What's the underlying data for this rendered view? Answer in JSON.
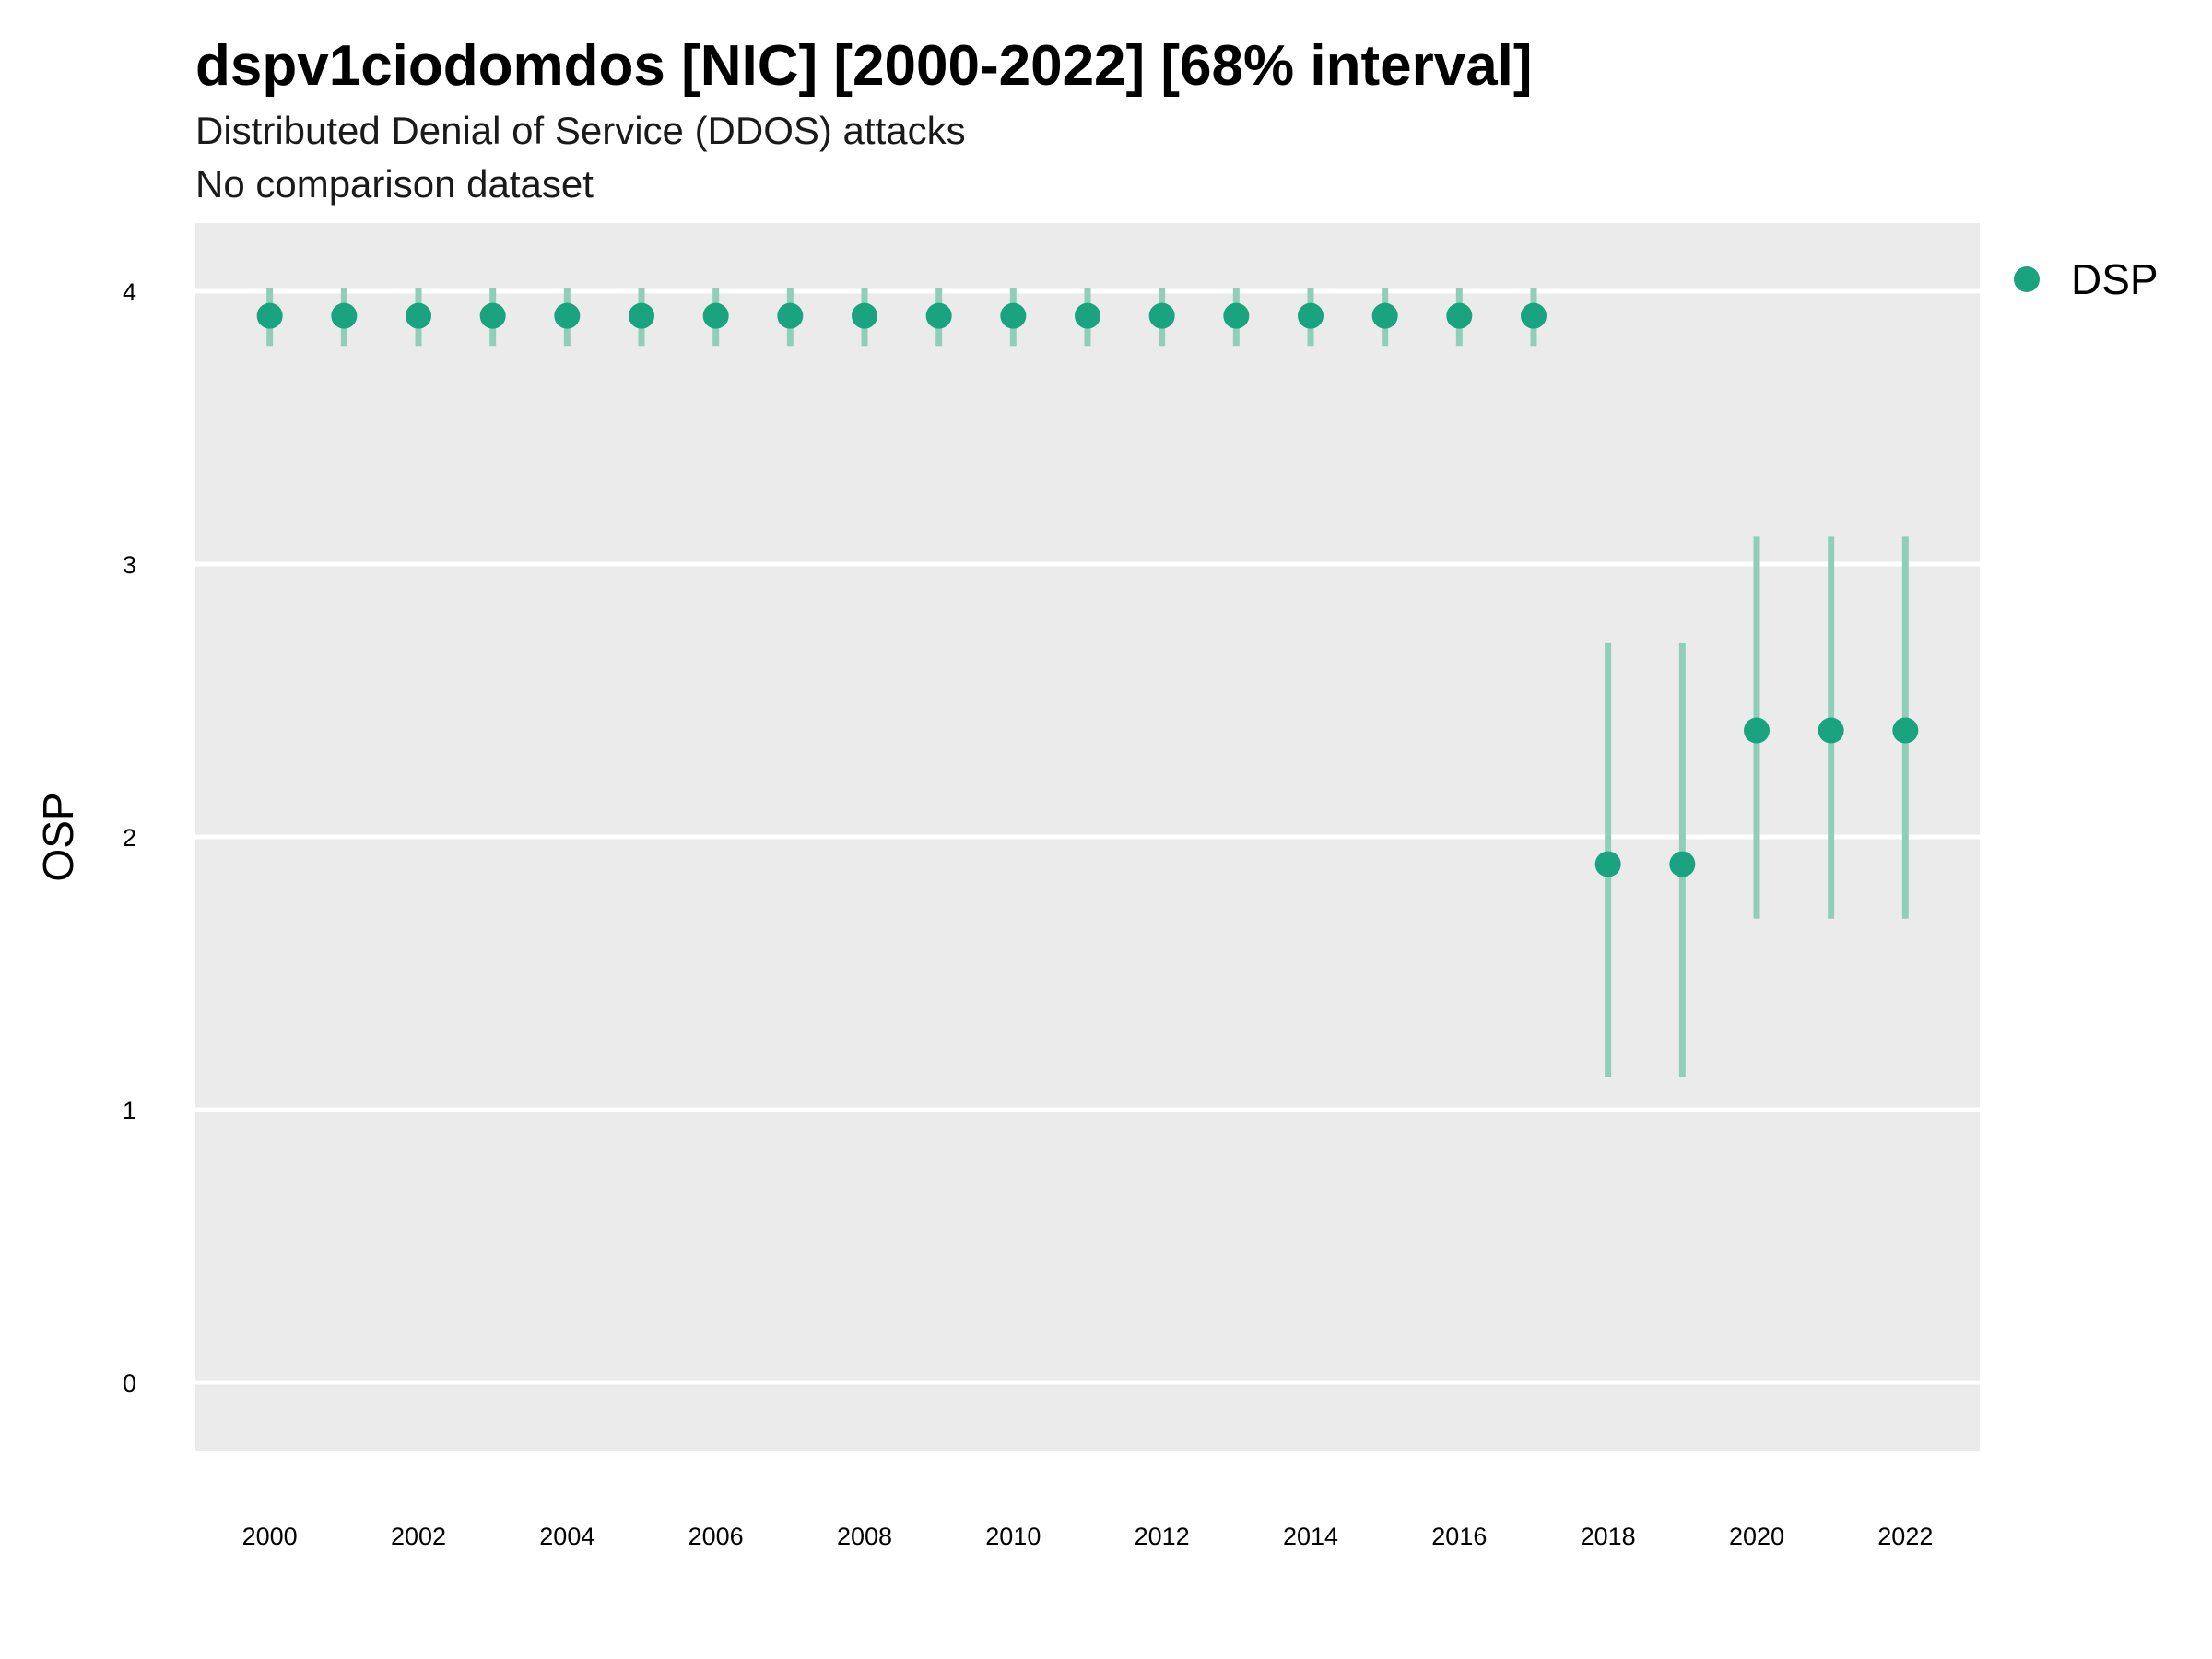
{
  "chart_data": {
    "type": "scatter",
    "title": "dspv1ciodomdos [NIC] [2000-2022] [68% interval]",
    "subtitle_lines": [
      "Distributed Denial of Service (DDOS) attacks",
      "No comparison dataset"
    ],
    "xlabel": "",
    "ylabel": "OSP",
    "xlim": [
      1999,
      2023
    ],
    "ylim": [
      -0.25,
      4.25
    ],
    "x_ticks": [
      2000,
      2002,
      2004,
      2006,
      2008,
      2010,
      2012,
      2014,
      2016,
      2018,
      2020,
      2022
    ],
    "y_ticks": [
      0,
      1,
      2,
      3,
      4
    ],
    "grid": true,
    "legend_position": "right",
    "colors": {
      "point": "#1aa37f",
      "interval": "#8fcfb9",
      "panel": "#ebebeb",
      "grid": "#ffffff"
    },
    "series": [
      {
        "name": "DSP",
        "x": [
          2000,
          2001,
          2002,
          2003,
          2004,
          2005,
          2006,
          2007,
          2008,
          2009,
          2010,
          2011,
          2012,
          2013,
          2014,
          2015,
          2016,
          2017,
          2018,
          2019,
          2020,
          2021,
          2022
        ],
        "y": [
          3.91,
          3.91,
          3.91,
          3.91,
          3.91,
          3.91,
          3.91,
          3.91,
          3.91,
          3.91,
          3.91,
          3.91,
          3.91,
          3.91,
          3.91,
          3.91,
          3.91,
          3.91,
          1.9,
          1.9,
          2.39,
          2.39,
          2.39
        ],
        "lower": [
          3.8,
          3.8,
          3.8,
          3.8,
          3.8,
          3.8,
          3.8,
          3.8,
          3.8,
          3.8,
          3.8,
          3.8,
          3.8,
          3.8,
          3.8,
          3.8,
          3.8,
          3.8,
          1.12,
          1.12,
          1.7,
          1.7,
          1.7
        ],
        "upper": [
          4.01,
          4.01,
          4.01,
          4.01,
          4.01,
          4.01,
          4.01,
          4.01,
          4.01,
          4.01,
          4.01,
          4.01,
          4.01,
          4.01,
          4.01,
          4.01,
          4.01,
          4.01,
          2.71,
          2.71,
          3.1,
          3.1,
          3.1
        ]
      }
    ]
  }
}
